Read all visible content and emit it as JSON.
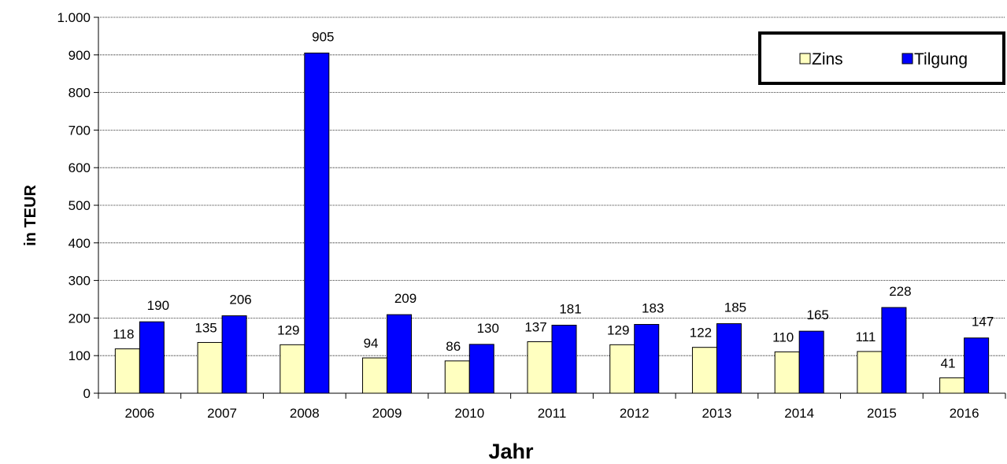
{
  "chart_data": {
    "type": "bar",
    "categories": [
      "2006",
      "2007",
      "2008",
      "2009",
      "2010",
      "2011",
      "2012",
      "2013",
      "2014",
      "2015",
      "2016"
    ],
    "series": [
      {
        "name": "Zins",
        "color": "#FFFFC0",
        "values": [
          118,
          135,
          129,
          94,
          86,
          137,
          129,
          122,
          110,
          111,
          41
        ]
      },
      {
        "name": "Tilgung",
        "color": "#0000FF",
        "values": [
          190,
          206,
          905,
          209,
          130,
          181,
          183,
          185,
          165,
          228,
          147
        ]
      }
    ],
    "xlabel": "Jahr",
    "ylabel": "in TEUR",
    "ylim": [
      0,
      1000
    ],
    "yticks": [
      0,
      100,
      200,
      300,
      400,
      500,
      600,
      700,
      800,
      900,
      1000
    ],
    "ytick_labels": [
      "0",
      "100",
      "200",
      "300",
      "400",
      "500",
      "600",
      "700",
      "800",
      "900",
      "1.000"
    ],
    "grid": true,
    "legend_position": "top-right"
  }
}
